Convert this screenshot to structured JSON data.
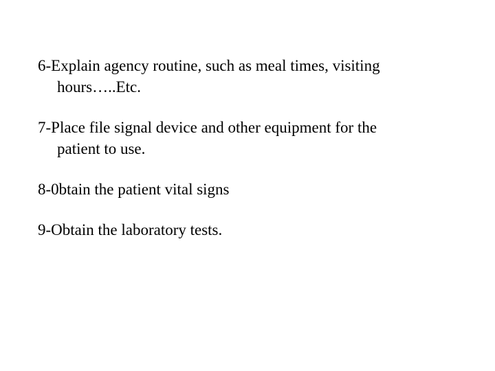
{
  "document": {
    "text_color": "#000000",
    "background_color": "#ffffff",
    "font_family": "Times New Roman",
    "font_size": 23,
    "items": [
      {
        "line1": "6-Explain agency routine, such as meal times, visiting",
        "line2": "hours…..Etc."
      },
      {
        "line1": "7-Place file signal device and other equipment for the",
        "line2": "patient to use."
      },
      {
        "line1": "8-0btain the patient vital signs",
        "line2": ""
      },
      {
        "line1": "9-Obtain the laboratory tests.",
        "line2": ""
      }
    ]
  }
}
